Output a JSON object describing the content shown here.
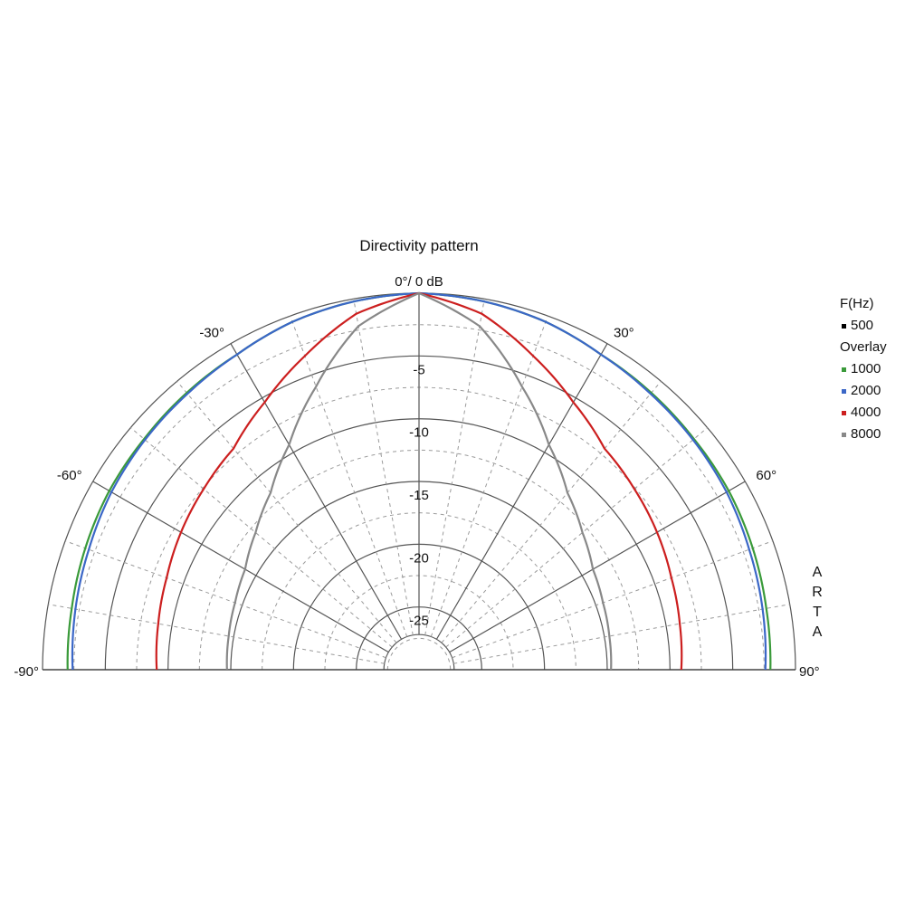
{
  "chart_data": {
    "type": "polar",
    "title": "Directivity pattern",
    "angle_range_deg": [
      -90,
      90
    ],
    "angle_unit": "°",
    "radial_range_db": [
      -30,
      0
    ],
    "radial_ticks_db": [
      -5,
      -10,
      -15,
      -20,
      -25
    ],
    "top_label": "0°/ 0 dB",
    "angle_tick_labels": [
      {
        "angle": -90,
        "text": "-90°"
      },
      {
        "angle": -60,
        "text": "-60°"
      },
      {
        "angle": -30,
        "text": "-30°"
      },
      {
        "angle": 30,
        "text": "30°"
      },
      {
        "angle": 60,
        "text": "60°"
      },
      {
        "angle": 90,
        "text": "90°"
      }
    ],
    "grid": {
      "solid_radial_step_db": 5,
      "dashed_radial_step_db": 2.5,
      "solid_spoke_step_deg": 30,
      "dashed_spoke_step_deg": 10
    },
    "legend_placement": "right",
    "legend_title": "F(Hz)",
    "legend_overlay_title": "Overlay",
    "main_series": {
      "name": "500",
      "color": "#000000"
    },
    "series": [
      {
        "name": "1000",
        "color": "#3a9a3a",
        "angles": [
          0,
          10,
          20,
          30,
          40,
          50,
          60,
          70,
          80,
          90
        ],
        "values": [
          0,
          -0.2,
          -0.5,
          -1.0,
          -1.2,
          -1.4,
          -1.5,
          -1.7,
          -1.9,
          -2.0
        ]
      },
      {
        "name": "2000",
        "color": "#3b67c7",
        "angles": [
          0,
          10,
          20,
          30,
          40,
          50,
          60,
          70,
          80,
          90
        ],
        "values": [
          0,
          -0.2,
          -0.5,
          -1.0,
          -1.3,
          -1.5,
          -1.7,
          -2.0,
          -2.2,
          -2.4
        ]
      },
      {
        "name": "4000",
        "color": "#cc1f1f",
        "angles": [
          0,
          10,
          20,
          30,
          40,
          50,
          60,
          70,
          80,
          90
        ],
        "values": [
          0,
          -1.2,
          -3.4,
          -5.4,
          -7.0,
          -7.6,
          -8.1,
          -8.6,
          -8.9,
          -9.1
        ]
      },
      {
        "name": "8000",
        "color": "#888888",
        "angles": [
          0,
          10,
          20,
          30,
          40,
          50,
          60,
          70,
          80,
          90
        ],
        "values": [
          0,
          -2.2,
          -6.0,
          -9.3,
          -11.6,
          -13.0,
          -14.0,
          -14.4,
          -14.6,
          -14.7
        ]
      }
    ]
  },
  "watermark": "ARTA"
}
